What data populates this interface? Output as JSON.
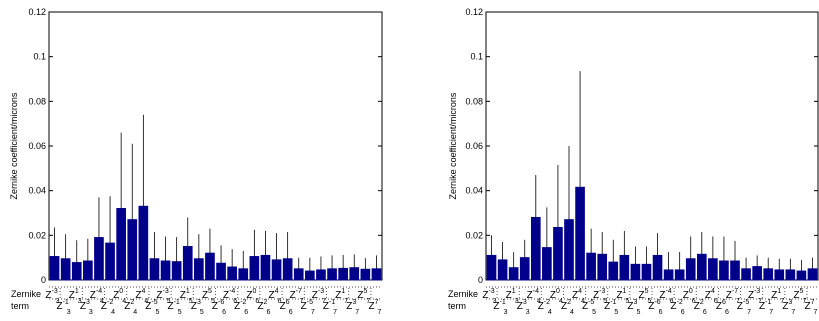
{
  "chart_data": [
    {
      "type": "bar",
      "ylabel": "Zernike coefficient/microns",
      "ylim": [
        0,
        0.12
      ],
      "yticks": [
        "0",
        "0.02",
        "0.04",
        "0.06",
        "0.08",
        "0.1",
        "0.12"
      ],
      "row_label_1": "Zernike",
      "row_label_2": "term",
      "categories": [
        "Z3-3",
        "Z3-1",
        "Z31",
        "Z33",
        "Z4-4",
        "Z4-2",
        "Z40",
        "Z42",
        "Z44",
        "Z5-5",
        "Z5-3",
        "Z5-1",
        "Z51",
        "Z53",
        "Z55",
        "Z6-6",
        "Z6-4",
        "Z6-2",
        "Z60",
        "Z62",
        "Z64",
        "Z66",
        "Z7-7",
        "Z7-5",
        "Z7-3",
        "Z7-1",
        "Z71",
        "Z73",
        "Z75",
        "Z77"
      ],
      "values": [
        0.0105,
        0.0095,
        0.0078,
        0.0085,
        0.019,
        0.0165,
        0.032,
        0.027,
        0.033,
        0.0095,
        0.0085,
        0.0082,
        0.015,
        0.0095,
        0.012,
        0.0075,
        0.0058,
        0.005,
        0.0105,
        0.011,
        0.009,
        0.0095,
        0.005,
        0.004,
        0.0045,
        0.005,
        0.0052,
        0.0055,
        0.0048,
        0.005
      ],
      "errors": [
        0.013,
        0.011,
        0.01,
        0.01,
        0.018,
        0.021,
        0.034,
        0.034,
        0.041,
        0.012,
        0.011,
        0.011,
        0.013,
        0.011,
        0.011,
        0.008,
        0.008,
        0.008,
        0.012,
        0.011,
        0.012,
        0.012,
        0.005,
        0.006,
        0.006,
        0.006,
        0.006,
        0.006,
        0.005,
        0.006
      ]
    },
    {
      "type": "bar",
      "ylabel": "Zernike coefficient/microns",
      "ylim": [
        0,
        0.12
      ],
      "yticks": [
        "0",
        "0.02",
        "0.04",
        "0.06",
        "0.08",
        "0.1",
        "0.12"
      ],
      "row_label_1": "Zernike",
      "row_label_2": "term",
      "categories": [
        "Z3-3",
        "Z3-1",
        "Z31",
        "Z33",
        "Z4-4",
        "Z4-2",
        "Z40",
        "Z42",
        "Z44",
        "Z5-5",
        "Z5-3",
        "Z5-1",
        "Z51",
        "Z53",
        "Z55",
        "Z6-6",
        "Z6-4",
        "Z6-2",
        "Z60",
        "Z62",
        "Z64",
        "Z66",
        "Z7-7",
        "Z7-5",
        "Z7-3",
        "Z7-1",
        "Z71",
        "Z73",
        "Z75",
        "Z77"
      ],
      "values": [
        0.011,
        0.009,
        0.0055,
        0.01,
        0.028,
        0.0145,
        0.0235,
        0.027,
        0.0415,
        0.012,
        0.0115,
        0.008,
        0.011,
        0.007,
        0.007,
        0.011,
        0.0045,
        0.0045,
        0.0095,
        0.0115,
        0.0095,
        0.0085,
        0.0085,
        0.005,
        0.006,
        0.005,
        0.0045,
        0.0045,
        0.004,
        0.005
      ],
      "errors": [
        0.009,
        0.008,
        0.007,
        0.008,
        0.019,
        0.018,
        0.028,
        0.033,
        0.052,
        0.011,
        0.01,
        0.01,
        0.011,
        0.008,
        0.008,
        0.01,
        0.008,
        0.008,
        0.01,
        0.01,
        0.01,
        0.011,
        0.009,
        0.005,
        0.005,
        0.005,
        0.005,
        0.005,
        0.005,
        0.005
      ]
    }
  ],
  "term_labels": [
    {
      "n": "3",
      "m": "-3"
    },
    {
      "n": "3",
      "m": "-1"
    },
    {
      "n": "3",
      "m": "1"
    },
    {
      "n": "3",
      "m": "3"
    },
    {
      "n": "4",
      "m": "-4"
    },
    {
      "n": "4",
      "m": "-2"
    },
    {
      "n": "4",
      "m": "0"
    },
    {
      "n": "4",
      "m": "2"
    },
    {
      "n": "4",
      "m": "4"
    },
    {
      "n": "5",
      "m": "-5"
    },
    {
      "n": "5",
      "m": "-3"
    },
    {
      "n": "5",
      "m": "-1"
    },
    {
      "n": "5",
      "m": "1"
    },
    {
      "n": "5",
      "m": "3"
    },
    {
      "n": "5",
      "m": "5"
    },
    {
      "n": "6",
      "m": "-6"
    },
    {
      "n": "6",
      "m": "-4"
    },
    {
      "n": "6",
      "m": "-2"
    },
    {
      "n": "6",
      "m": "0"
    },
    {
      "n": "6",
      "m": "2"
    },
    {
      "n": "6",
      "m": "4"
    },
    {
      "n": "6",
      "m": "6"
    },
    {
      "n": "7",
      "m": "-7"
    },
    {
      "n": "7",
      "m": "-5"
    },
    {
      "n": "7",
      "m": "-3"
    },
    {
      "n": "7",
      "m": "-1"
    },
    {
      "n": "7",
      "m": "1"
    },
    {
      "n": "7",
      "m": "3"
    },
    {
      "n": "7",
      "m": "5"
    },
    {
      "n": "7",
      "m": "7"
    }
  ],
  "term_letter": "Z",
  "colors": {
    "bar": "#00008b",
    "axis": "#000000",
    "error": "#000000"
  }
}
